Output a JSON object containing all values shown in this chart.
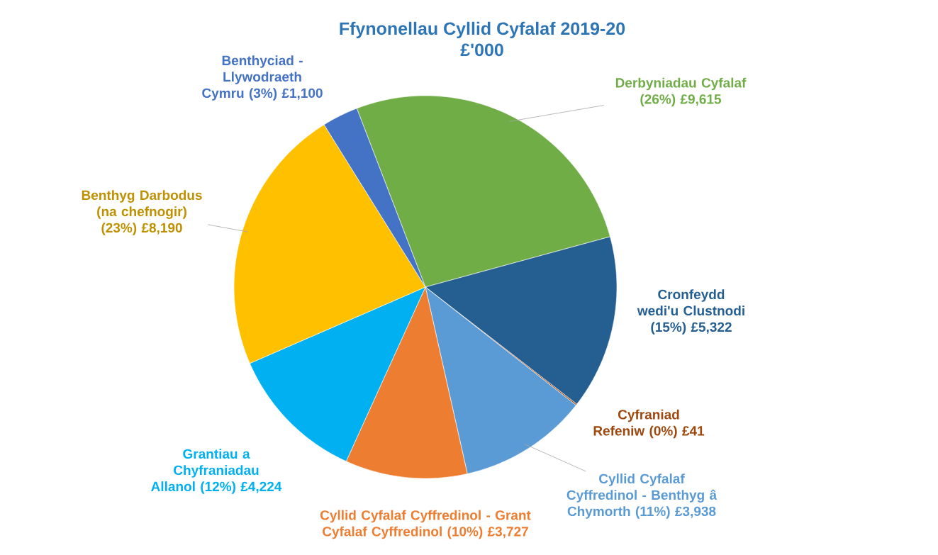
{
  "chart_data": {
    "type": "pie",
    "title": "Ffynonellau Cyllid Cyfalaf 2019-20",
    "subtitle": "£'000",
    "categories": [
      "Derbyniadau Cyfalaf",
      "Cronfeydd wedi'u Clustnodi",
      "Cyfraniad Refeniw",
      "Cyllid Cyfalaf Cyffredinol - Benthyg â Chymorth",
      "Cyllid Cyfalaf Cyffredinol - Grant Cyfalaf Cyffredinol",
      "Grantiau a Chyfraniadau Allanol",
      "Benthyg Darbodus (na chefnogir)",
      "Benthyciad - Llywodraeth Cymru"
    ],
    "values": [
      9615,
      5322,
      41,
      3938,
      3727,
      4224,
      8190,
      1100
    ],
    "value_labels": [
      "(26%) £9,615",
      "(15%) £5,322",
      "(0%) £41",
      "(11%) £3,938",
      "(10%) £3,727",
      "(12%) £4,224",
      "(23%) £8,190",
      "(3%) £1,100"
    ],
    "colors": [
      "#70ad47",
      "#255e91",
      "#9e480e",
      "#5b9bd5",
      "#ed7d31",
      "#00b0f0",
      "#ffc000",
      "#4472c4"
    ],
    "legend": false
  }
}
